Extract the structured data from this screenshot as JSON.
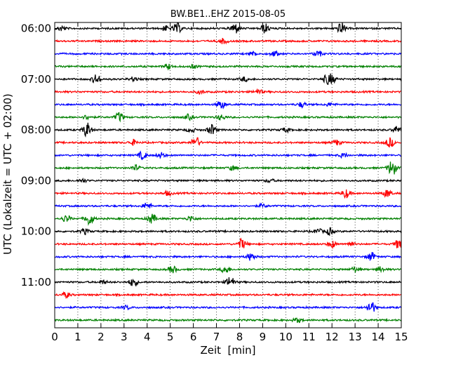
{
  "chart_data": {
    "type": "line",
    "title": "BW.BE1..EHZ 2015-08-05",
    "xlabel": "Zeit  [min]",
    "ylabel": "UTC (Lokalzeit = UTC + 02:00)",
    "xlim": [
      0,
      15
    ],
    "x_ticks": [
      "0",
      "1",
      "2",
      "3",
      "4",
      "5",
      "6",
      "7",
      "8",
      "9",
      "10",
      "11",
      "12",
      "13",
      "14",
      "15"
    ],
    "y_ticks": [
      {
        "row": 0,
        "label": "06:00"
      },
      {
        "row": 4,
        "label": "07:00"
      },
      {
        "row": 8,
        "label": "08:00"
      },
      {
        "row": 12,
        "label": "09:00"
      },
      {
        "row": 16,
        "label": "10:00"
      },
      {
        "row": 20,
        "label": "11:00"
      }
    ],
    "grid": "vertical dotted at each minute",
    "trace_colors": [
      "#000000",
      "#ff0000",
      "#0000ff",
      "#008000"
    ],
    "traces": [
      {
        "start": "06:00",
        "events": [
          [
            0.3,
            0.6
          ],
          [
            4.8,
            0.6
          ],
          [
            5.3,
            1.2
          ],
          [
            7.8,
            1.3
          ],
          [
            9.1,
            1.1
          ],
          [
            12.4,
            1.3
          ]
        ]
      },
      {
        "start": "06:15",
        "events": [
          [
            7.3,
            0.6
          ]
        ]
      },
      {
        "start": "06:30",
        "events": [
          [
            8.6,
            0.5
          ],
          [
            9.5,
            0.6
          ],
          [
            11.4,
            0.7
          ]
        ]
      },
      {
        "start": "06:45",
        "events": [
          [
            4.9,
            0.6
          ],
          [
            6.0,
            0.4
          ]
        ]
      },
      {
        "start": "07:00",
        "events": [
          [
            1.8,
            1.1
          ],
          [
            3.4,
            0.5
          ],
          [
            8.2,
            0.5
          ],
          [
            11.8,
            1.0
          ],
          [
            12.0,
            0.8
          ]
        ]
      },
      {
        "start": "07:15",
        "events": [
          [
            6.3,
            0.4
          ],
          [
            8.8,
            0.6
          ]
        ]
      },
      {
        "start": "07:30",
        "events": [
          [
            7.2,
            0.9
          ],
          [
            10.7,
            0.6
          ],
          [
            11.9,
            0.4
          ]
        ]
      },
      {
        "start": "07:45",
        "events": [
          [
            1.4,
            0.5
          ],
          [
            2.8,
            1.1
          ],
          [
            5.8,
            0.6
          ],
          [
            7.2,
            0.6
          ]
        ]
      },
      {
        "start": "08:00",
        "events": [
          [
            1.4,
            1.7
          ],
          [
            5.9,
            0.5
          ],
          [
            6.8,
            1.2
          ],
          [
            10.0,
            0.5
          ],
          [
            14.8,
            0.8
          ]
        ]
      },
      {
        "start": "08:15",
        "events": [
          [
            3.4,
            0.6
          ],
          [
            6.1,
            1.3
          ],
          [
            12.2,
            0.6
          ],
          [
            14.5,
            1.1
          ]
        ]
      },
      {
        "start": "08:30",
        "events": [
          [
            3.8,
            0.9
          ],
          [
            4.6,
            0.6
          ],
          [
            12.5,
            0.5
          ]
        ]
      },
      {
        "start": "08:45",
        "events": [
          [
            3.5,
            0.6
          ],
          [
            7.7,
            0.5
          ],
          [
            14.6,
            1.9
          ]
        ]
      },
      {
        "start": "09:00",
        "events": [
          [
            1.2,
            0.4
          ],
          [
            9.3,
            0.4
          ]
        ]
      },
      {
        "start": "09:15",
        "events": [
          [
            4.9,
            0.5
          ],
          [
            12.6,
            1.0
          ],
          [
            14.4,
            0.9
          ]
        ]
      },
      {
        "start": "09:30",
        "events": [
          [
            4.0,
            0.8
          ],
          [
            9.0,
            0.4
          ]
        ]
      },
      {
        "start": "09:45",
        "events": [
          [
            0.5,
            0.8
          ],
          [
            1.5,
            1.5
          ],
          [
            4.2,
            1.1
          ],
          [
            5.9,
            0.6
          ]
        ]
      },
      {
        "start": "10:00",
        "events": [
          [
            1.3,
            0.6
          ],
          [
            11.4,
            0.6
          ],
          [
            11.9,
            0.8
          ]
        ]
      },
      {
        "start": "10:15",
        "events": [
          [
            8.1,
            1.2
          ],
          [
            12.0,
            0.8
          ],
          [
            12.8,
            0.5
          ],
          [
            14.9,
            1.2
          ]
        ]
      },
      {
        "start": "10:30",
        "events": [
          [
            8.5,
            0.9
          ],
          [
            13.7,
            1.0
          ]
        ]
      },
      {
        "start": "10:45",
        "events": [
          [
            5.1,
            0.8
          ],
          [
            7.4,
            0.9
          ],
          [
            13.0,
            0.6
          ],
          [
            14.1,
            0.6
          ]
        ]
      },
      {
        "start": "11:00",
        "events": [
          [
            2.1,
            0.4
          ],
          [
            3.4,
            1.0
          ],
          [
            7.6,
            1.3
          ]
        ]
      },
      {
        "start": "11:15",
        "events": [
          [
            0.5,
            0.6
          ]
        ]
      },
      {
        "start": "11:30",
        "events": [
          [
            3.1,
            0.4
          ],
          [
            13.7,
            1.4
          ]
        ]
      },
      {
        "start": "11:45",
        "events": [
          [
            10.5,
            0.5
          ]
        ]
      }
    ]
  }
}
